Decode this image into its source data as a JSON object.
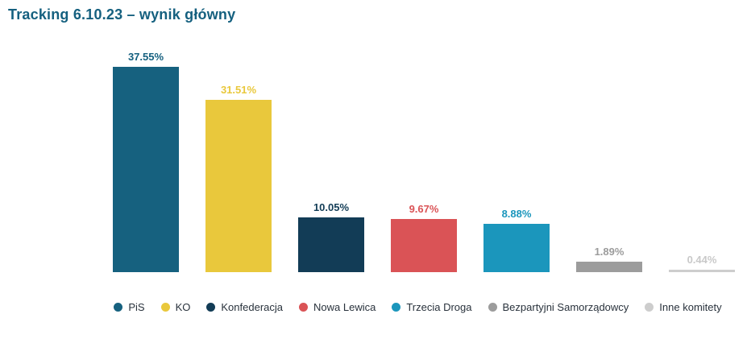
{
  "title": "Tracking 6.10.23 – wynik główny",
  "title_color": "#15607f",
  "chart_data": {
    "type": "bar",
    "title": "Tracking 6.10.23 – wynik główny",
    "categories": [
      "PiS",
      "KO",
      "Konfederacja",
      "Nowa Lewica",
      "Trzecia Droga",
      "Bezpartyjni Samorządowcy",
      "Inne komitety"
    ],
    "values": [
      37.55,
      31.51,
      10.05,
      9.67,
      8.88,
      1.89,
      0.44
    ],
    "value_labels": [
      "37.55%",
      "31.51%",
      "10.05%",
      "9.67%",
      "8.88%",
      "1.89%",
      "0.44%"
    ],
    "bar_colors": [
      "#16617f",
      "#e9c83c",
      "#123c56",
      "#da5356",
      "#1b96bc",
      "#9c9c9c",
      "#cdcdcd"
    ],
    "label_colors": [
      "#15607f",
      "#e9c83c",
      "#123c56",
      "#da5356",
      "#1b96bc",
      "#9c9c9c",
      "#c9c9c9"
    ],
    "xlabel": "",
    "ylabel": "",
    "ylim": [
      0,
      40
    ],
    "grid": false,
    "axes_visible": false,
    "legend_position": "bottom"
  },
  "legend": {
    "items": [
      {
        "label": "PiS",
        "color": "#16617f"
      },
      {
        "label": "KO",
        "color": "#e9c83c"
      },
      {
        "label": "Konfederacja",
        "color": "#123c56"
      },
      {
        "label": "Nowa Lewica",
        "color": "#da5356"
      },
      {
        "label": "Trzecia Droga",
        "color": "#1b96bc"
      },
      {
        "label": "Bezpartyjni Samorządowcy",
        "color": "#9c9c9c"
      },
      {
        "label": "Inne komitety",
        "color": "#cdcdcd"
      }
    ]
  }
}
